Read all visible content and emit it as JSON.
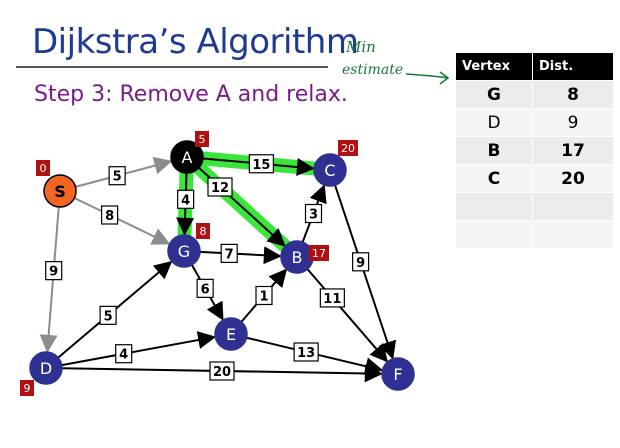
{
  "title": "Dijkstra’s Algorithm",
  "subtitle": "Step 3: Remove A and relax.",
  "annotation": {
    "line1": "Min",
    "line2": "estimate"
  },
  "table": {
    "headers": [
      "Vertex",
      "Dist."
    ],
    "rows": [
      {
        "vertex": "G",
        "dist": "8",
        "bold": true
      },
      {
        "vertex": "D",
        "dist": "9",
        "bold": false
      },
      {
        "vertex": "B",
        "dist": "17",
        "bold": true
      },
      {
        "vertex": "C",
        "dist": "20",
        "bold": true
      },
      {
        "vertex": "",
        "dist": "",
        "bold": false
      },
      {
        "vertex": "",
        "dist": "",
        "bold": false
      }
    ]
  },
  "colors": {
    "unvisited": "#2e3192",
    "current": "#000000",
    "source": "#f26522",
    "highlight": "#39e639",
    "dist_badge": "#b01010"
  },
  "graph": {
    "nodes": [
      {
        "id": "S",
        "label": "S",
        "dist": "0",
        "state": "source"
      },
      {
        "id": "A",
        "label": "A",
        "dist": "5",
        "state": "current"
      },
      {
        "id": "C",
        "label": "C",
        "dist": "20",
        "state": "unvisited"
      },
      {
        "id": "G",
        "label": "G",
        "dist": "8",
        "state": "unvisited"
      },
      {
        "id": "B",
        "label": "B",
        "dist": "17",
        "state": "unvisited"
      },
      {
        "id": "D",
        "label": "D",
        "dist": "9",
        "state": "unvisited"
      },
      {
        "id": "E",
        "label": "E",
        "dist": "",
        "state": "unvisited"
      },
      {
        "id": "F",
        "label": "F",
        "dist": "",
        "state": "unvisited"
      }
    ],
    "edges": [
      {
        "from": "S",
        "to": "A",
        "weight": "5",
        "style": "gray"
      },
      {
        "from": "S",
        "to": "G",
        "weight": "8",
        "style": "gray"
      },
      {
        "from": "S",
        "to": "D",
        "weight": "9",
        "style": "gray"
      },
      {
        "from": "A",
        "to": "C",
        "weight": "15",
        "style": "highlight"
      },
      {
        "from": "A",
        "to": "G",
        "weight": "4",
        "style": "highlight"
      },
      {
        "from": "A",
        "to": "B",
        "weight": "12",
        "style": "highlight"
      },
      {
        "from": "G",
        "to": "B",
        "weight": "7",
        "style": "black"
      },
      {
        "from": "G",
        "to": "E",
        "weight": "6",
        "style": "black"
      },
      {
        "from": "D",
        "to": "G",
        "weight": "5",
        "style": "black"
      },
      {
        "from": "D",
        "to": "E",
        "weight": "4",
        "style": "black"
      },
      {
        "from": "D",
        "to": "F",
        "weight": "20",
        "style": "black"
      },
      {
        "from": "E",
        "to": "B",
        "weight": "1",
        "style": "black"
      },
      {
        "from": "E",
        "to": "F",
        "weight": "13",
        "style": "black"
      },
      {
        "from": "B",
        "to": "C",
        "weight": "3",
        "style": "black"
      },
      {
        "from": "B",
        "to": "F",
        "weight": "11",
        "style": "black"
      },
      {
        "from": "C",
        "to": "F",
        "weight": "9",
        "style": "black"
      }
    ]
  }
}
